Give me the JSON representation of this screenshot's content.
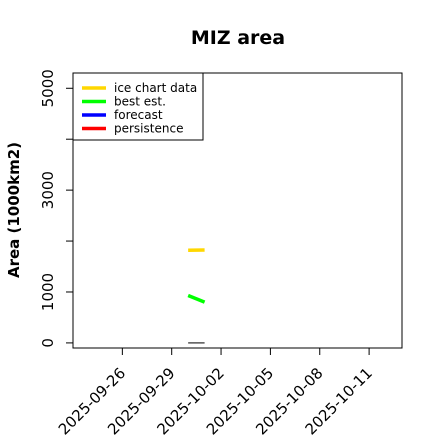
{
  "chart_data": {
    "type": "line",
    "title": "MIZ area",
    "xlabel": "",
    "ylabel": "Area (1000km2)",
    "xlim": [
      "2025-09-23",
      "2025-10-13"
    ],
    "ylim": [
      -100,
      5300
    ],
    "x_ticks": [
      "2025-09-26",
      "2025-09-29",
      "2025-10-02",
      "2025-10-05",
      "2025-10-08",
      "2025-10-11"
    ],
    "x_tick_colors": [
      "#000000",
      "#000000",
      "#228b22",
      "#000000",
      "#000000",
      "#000000"
    ],
    "y_ticks": [
      0,
      1000,
      2000,
      3000,
      4000,
      5000
    ],
    "y_tick_labels": [
      "0",
      "1000",
      "",
      "3000",
      "",
      "5000"
    ],
    "legend": {
      "position": "top-left"
    },
    "series": [
      {
        "name": "ice chart data",
        "color": "#ffd700",
        "x": [
          "2025-09-30",
          "2025-10-01"
        ],
        "y": [
          1820,
          1825
        ]
      },
      {
        "name": "best est.",
        "color": "#00ff00",
        "x": [
          "2025-09-30",
          "2025-10-01"
        ],
        "y": [
          930,
          800
        ]
      },
      {
        "name": "forecast",
        "color": "#0000ff",
        "x": [],
        "y": []
      },
      {
        "name": "persistence",
        "color": "#ff0000",
        "x": [],
        "y": []
      }
    ],
    "reference_line": {
      "color": "#555555",
      "x": [
        "2025-09-30",
        "2025-10-01"
      ],
      "y": [
        0,
        0
      ]
    }
  }
}
